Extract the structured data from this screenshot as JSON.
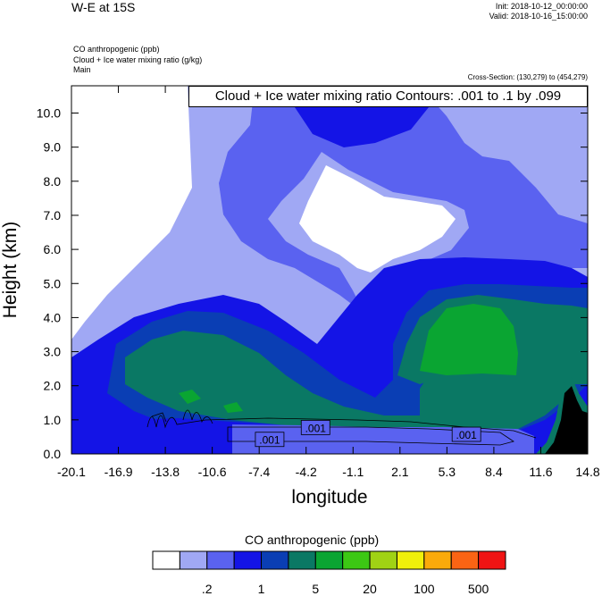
{
  "header": {
    "title": "W-E at 15S",
    "init": "Init: 2018-10-12_00:00:00",
    "valid": "Valid: 2018-10-16_15:00:00",
    "fields": [
      "CO anthropogenic   (ppb)",
      "Cloud + Ice water mixing ratio   (g/kg)",
      "Main"
    ],
    "cross_section": "Cross-Section: (130,279) to (454,279)",
    "contour_info": "Cloud + Ice water mixing ratio Contours: .001 to .1 by .099"
  },
  "chart_data": {
    "type": "heatmap",
    "xlabel": "longitude",
    "ylabel": "Height (km)",
    "x_ticks": [
      "-20.1",
      "-16.9",
      "-13.8",
      "-10.6",
      "-7.4",
      "-4.2",
      "-1.1",
      "2.1",
      "5.3",
      "8.4",
      "11.6",
      "14.8"
    ],
    "y_ticks": [
      "0.0",
      "1.0",
      "2.0",
      "3.0",
      "4.0",
      "5.0",
      "6.0",
      "7.0",
      "8.0",
      "9.0",
      "10.0"
    ],
    "xlim": [
      -20.1,
      14.8
    ],
    "ylim": [
      0.0,
      10.8
    ],
    "contour_labels": [
      {
        "text": ".001",
        "lon": -6.7,
        "height": 0.4
      },
      {
        "text": ".001",
        "lon": -3.6,
        "height": 0.75
      },
      {
        "text": ".001",
        "lon": 6.6,
        "height": 0.55
      }
    ]
  },
  "colorbar": {
    "title": "CO anthropogenic  (ppb)",
    "colors": [
      "#ffffff",
      "#a0a8f4",
      "#5a62f0",
      "#1414e6",
      "#0a3eb4",
      "#0a7864",
      "#0aa532",
      "#3cc814",
      "#a0d214",
      "#f0f00a",
      "#faaa0a",
      "#fa6414",
      "#f01414"
    ],
    "labels": [
      ".2",
      "1",
      "5",
      "20",
      "100",
      "500"
    ]
  }
}
